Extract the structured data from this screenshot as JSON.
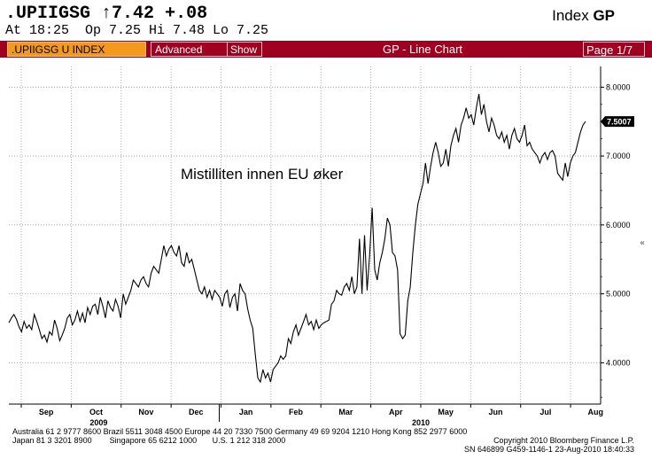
{
  "header": {
    "ticker": ".UPIIGSG",
    "arrow": "↑",
    "last": "7.42",
    "change": "+.08",
    "quote_line": "At 18:25  Op 7.25 Hi 7.48 Lo 7.25",
    "index_label": "Index",
    "index_code": "GP"
  },
  "toolbar": {
    "security": ".UPIIGSG U INDEX",
    "advanced": "Advanced",
    "show": "Show",
    "title": "GP - Line Chart",
    "page": "Page 1/7"
  },
  "colors": {
    "toolbar_bg": "#a0001f",
    "security_bg": "#f39a1e",
    "line": "#000000",
    "grid": "#888888"
  },
  "chart_data": {
    "type": "line",
    "title": "",
    "annotation": "Mistilliten innen EU øker",
    "ylim": [
      3.4,
      8.3
    ],
    "y_ticks": [
      "4.0000",
      "5.0000",
      "6.0000",
      "7.0000",
      "8.0000"
    ],
    "y_tick_values": [
      4,
      5,
      6,
      7,
      8
    ],
    "last_value_label": "7.5007",
    "last_value": 7.5007,
    "x_month_labels": [
      "Sep",
      "Oct",
      "Nov",
      "Dec",
      "Jan",
      "Feb",
      "Mar",
      "Apr",
      "May",
      "Jun",
      "Jul",
      "Aug"
    ],
    "x_year_labels": [
      "2009",
      "2010"
    ],
    "grid": true,
    "series": [
      {
        "values": [
          4.58,
          4.65,
          4.7,
          4.63,
          4.52,
          4.45,
          4.6,
          4.5,
          4.55,
          4.48,
          4.7,
          4.6,
          4.48,
          4.35,
          4.4,
          4.3,
          4.45,
          4.4,
          4.62,
          4.5,
          4.32,
          4.4,
          4.5,
          4.65,
          4.7,
          4.55,
          4.62,
          4.75,
          4.6,
          4.72,
          4.58,
          4.8,
          4.7,
          4.82,
          4.85,
          4.7,
          4.95,
          4.82,
          4.65,
          4.9,
          4.8,
          4.75,
          4.92,
          4.82,
          4.65,
          5.0,
          4.85,
          4.95,
          5.05,
          5.2,
          5.15,
          5.1,
          5.2,
          5.25,
          5.15,
          5.1,
          5.3,
          5.4,
          5.35,
          5.3,
          5.5,
          5.7,
          5.55,
          5.65,
          5.7,
          5.6,
          5.55,
          5.7,
          5.45,
          5.4,
          5.6,
          5.45,
          5.5,
          5.35,
          5.2,
          5.05,
          5.0,
          5.1,
          4.95,
          5.05,
          4.92,
          5.05,
          5.0,
          4.95,
          4.82,
          5.0,
          5.05,
          4.8,
          4.95,
          5.0,
          4.75,
          5.15,
          5.05,
          5.0,
          4.78,
          4.62,
          4.5,
          4.12,
          3.78,
          3.72,
          3.9,
          3.78,
          3.85,
          3.72,
          3.9,
          3.95,
          4.0,
          4.1,
          4.05,
          4.1,
          4.35,
          4.28,
          4.45,
          4.55,
          4.4,
          4.5,
          4.6,
          4.7,
          4.55,
          4.6,
          4.48,
          4.62,
          4.5,
          4.55,
          4.58,
          4.6,
          4.62,
          4.85,
          4.9,
          5.05,
          5.0,
          4.98,
          5.1,
          5.15,
          5.05,
          5.25,
          5.0,
          5.1,
          5.8,
          5.0,
          5.85,
          5.05,
          5.55,
          6.25,
          5.35,
          5.2,
          5.45,
          5.6,
          5.8,
          6.1,
          6.0,
          5.6,
          5.55,
          5.35,
          4.42,
          4.35,
          4.4,
          4.9,
          5.1,
          5.6,
          6.0,
          6.3,
          6.45,
          6.6,
          6.9,
          6.6,
          6.85,
          7.05,
          7.2,
          7.05,
          6.85,
          6.9,
          7.1,
          6.85,
          7.15,
          7.3,
          7.4,
          7.2,
          7.45,
          7.55,
          7.7,
          7.55,
          7.6,
          7.45,
          7.7,
          7.9,
          7.6,
          7.75,
          7.5,
          7.35,
          7.55,
          7.45,
          7.3,
          7.25,
          7.35,
          7.2,
          7.3,
          7.1,
          7.3,
          7.4,
          7.25,
          7.2,
          7.3,
          7.45,
          7.15,
          7.2,
          7.1,
          7.05,
          7.0,
          6.9,
          7.0,
          7.05,
          6.95,
          7.05,
          7.08,
          7.0,
          6.75,
          6.7,
          6.65,
          6.9,
          6.7,
          6.9,
          7.0,
          7.05,
          7.2,
          7.35,
          7.45,
          7.5
        ]
      }
    ]
  },
  "footer": {
    "line1": "Australia 61 2 9777 8600 Brazil 5511 3048 4500 Europe 44 20 7330 7500 Germany 49 69 9204 1210 Hong Kong 852 2977 6000",
    "line2_left": "Japan 81 3 3201 8900        Singapore 65 6212 1000       U.S. 1 212 318 2000",
    "line2_right": "Copyright 2010 Bloomberg Finance L.P.",
    "line3": "SN 646899 G459-1146-1 23-Aug-2010 18:40:33"
  }
}
